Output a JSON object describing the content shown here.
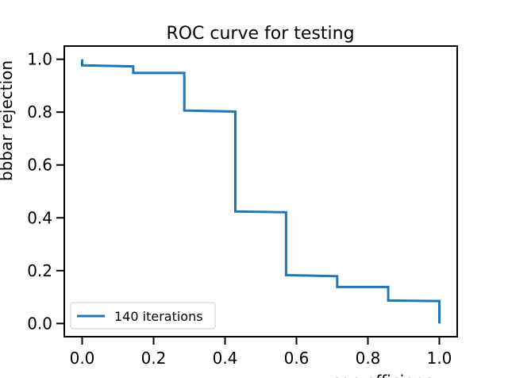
{
  "chart_data": {
    "type": "line",
    "title": "ROC curve for testing",
    "xlabel": "sgn efficiency",
    "ylabel": "bbbar rejection",
    "xlim": [
      -0.05,
      1.05
    ],
    "ylim": [
      -0.05,
      1.05
    ],
    "x_ticks": [
      0.0,
      0.2,
      0.4,
      0.6,
      0.8,
      1.0
    ],
    "y_ticks": [
      0.0,
      0.2,
      0.4,
      0.6,
      0.8,
      1.0
    ],
    "x_tick_labels": [
      "0.0",
      "0.2",
      "0.4",
      "0.6",
      "0.8",
      "1.0"
    ],
    "y_tick_labels": [
      "0.0",
      "0.2",
      "0.4",
      "0.6",
      "0.8",
      "1.0"
    ],
    "grid": false,
    "legend_position": "lower-left",
    "series": [
      {
        "name": "140 iterations",
        "color": "#1f77b4",
        "x": [
          0.0,
          0.0,
          0.143,
          0.143,
          0.286,
          0.286,
          0.429,
          0.429,
          0.571,
          0.571,
          0.714,
          0.714,
          0.857,
          0.857,
          1.0,
          1.0
        ],
        "y": [
          1.0,
          0.977,
          0.973,
          0.948,
          0.948,
          0.806,
          0.802,
          0.424,
          0.421,
          0.183,
          0.179,
          0.138,
          0.138,
          0.087,
          0.085,
          0.0
        ]
      }
    ]
  }
}
